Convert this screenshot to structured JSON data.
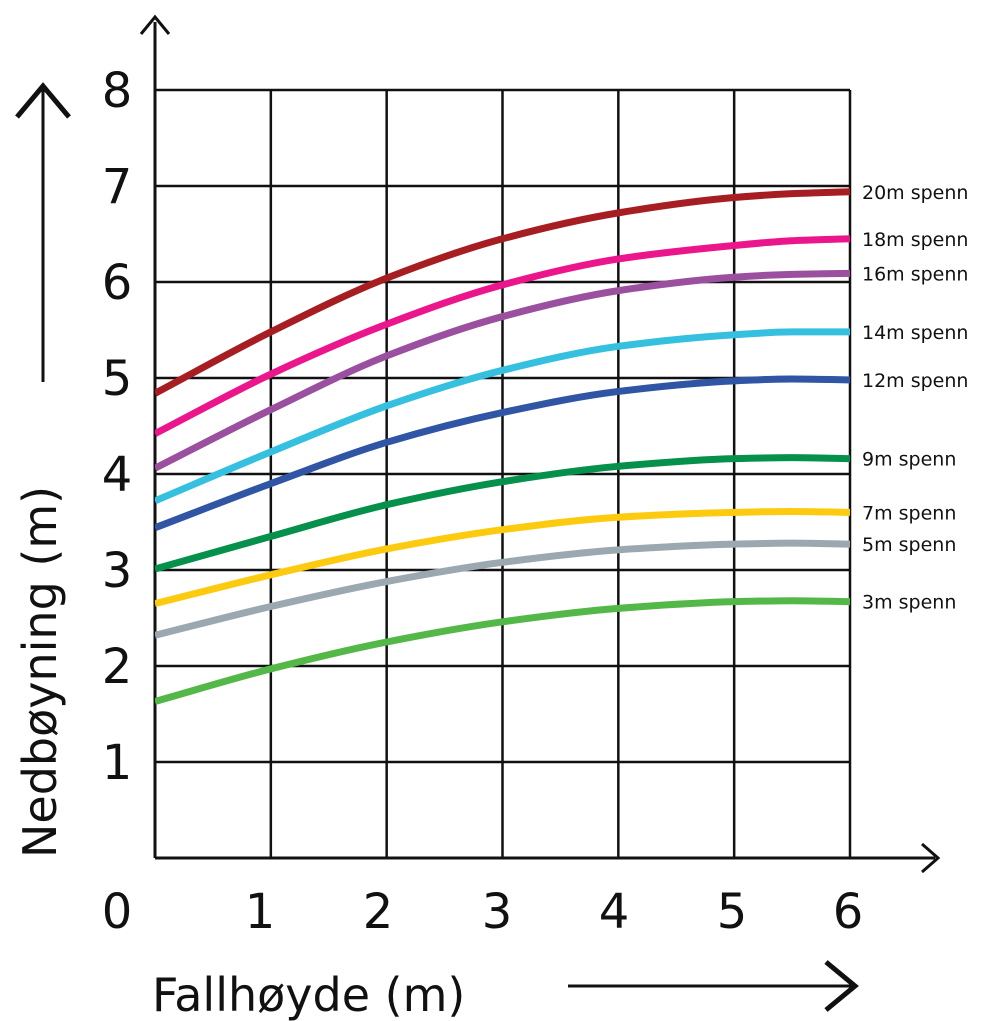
{
  "chart_data": {
    "type": "line",
    "title": "",
    "xlabel": "Fallhøyde (m)",
    "ylabel": "Nedbøyning (m)",
    "xlim": [
      0,
      6
    ],
    "ylim": [
      0,
      8
    ],
    "xticks": [
      "0",
      "1",
      "2",
      "3",
      "4",
      "5",
      "6"
    ],
    "yticks": [
      "1",
      "2",
      "3",
      "4",
      "5",
      "6",
      "7",
      "8"
    ],
    "grid": true,
    "legend": "none (series labelled at right end of each line)",
    "x": [
      0,
      1,
      2,
      3,
      4,
      5,
      5.5,
      6
    ],
    "series": [
      {
        "name": "20m spenn",
        "color": "#a61e22",
        "values": [
          4.84,
          5.48,
          6.04,
          6.45,
          6.72,
          6.88,
          6.92,
          6.94
        ]
      },
      {
        "name": "18m spenn",
        "color": "#ec168c",
        "values": [
          4.42,
          5.04,
          5.56,
          5.97,
          6.24,
          6.38,
          6.43,
          6.45
        ]
      },
      {
        "name": "16m spenn",
        "color": "#9b4f9f",
        "values": [
          4.06,
          4.67,
          5.23,
          5.64,
          5.91,
          6.05,
          6.08,
          6.09
        ]
      },
      {
        "name": "14m spenn",
        "color": "#36c0e0",
        "values": [
          3.72,
          4.23,
          4.71,
          5.08,
          5.33,
          5.45,
          5.48,
          5.48
        ]
      },
      {
        "name": "12m spenn",
        "color": "#2f55a4",
        "values": [
          3.44,
          3.9,
          4.33,
          4.64,
          4.86,
          4.97,
          4.99,
          4.98
        ]
      },
      {
        "name": "9m spenn",
        "color": "#05904c",
        "values": [
          3.01,
          3.35,
          3.68,
          3.92,
          4.08,
          4.16,
          4.17,
          4.16
        ]
      },
      {
        "name": "7m spenn",
        "color": "#fccb10",
        "values": [
          2.65,
          2.95,
          3.22,
          3.42,
          3.55,
          3.6,
          3.61,
          3.6
        ]
      },
      {
        "name": "5m spenn",
        "color": "#9ca8af",
        "values": [
          2.32,
          2.62,
          2.88,
          3.08,
          3.21,
          3.27,
          3.28,
          3.27
        ]
      },
      {
        "name": "3m spenn",
        "color": "#53b848",
        "values": [
          1.63,
          1.97,
          2.25,
          2.46,
          2.6,
          2.67,
          2.68,
          2.67
        ]
      }
    ]
  }
}
